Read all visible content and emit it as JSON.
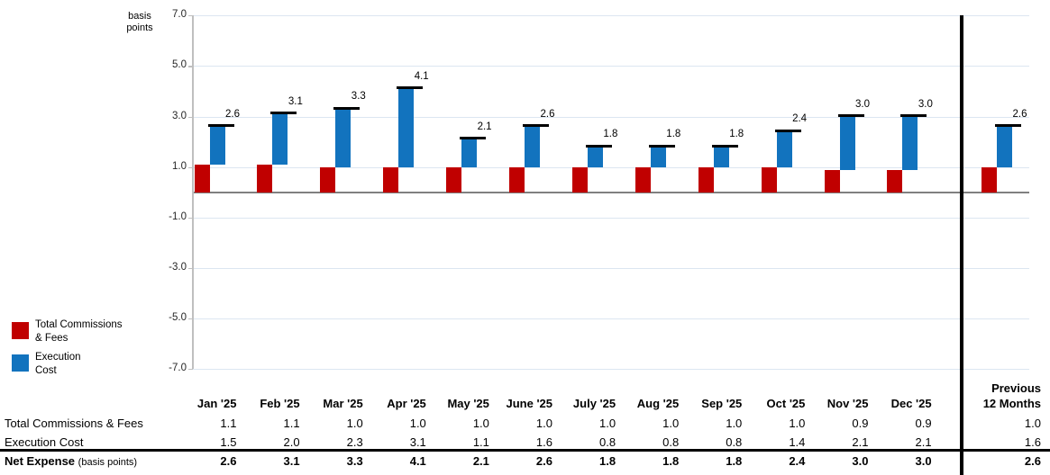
{
  "chart": {
    "unit_label_line1": "basis",
    "unit_label_line2": "points",
    "y_tick_values": [
      7,
      5,
      3,
      1,
      -1,
      -3,
      -5,
      -7
    ],
    "y_tick_labels": [
      "7.0",
      "5.0",
      "3.0",
      "1.0",
      "-1.0",
      "-3.0",
      "-5.0",
      "-7.0"
    ],
    "gridline_color": "#dce6f1",
    "zero_line_color": "#808080",
    "separator_color": "#000000"
  },
  "chart_data": {
    "type": "bar",
    "subtype": "stacked-waterfall with net total markers",
    "categories": [
      "Jan '25",
      "Feb '25",
      "Mar '25",
      "Apr '25",
      "May '25",
      "June '25",
      "July '25",
      "Aug '25",
      "Sep '25",
      "Oct '25",
      "Nov '25",
      "Dec '25",
      "Previous 12 Months"
    ],
    "series": [
      {
        "name": "Total Commissions & Fees",
        "color": "#c00000",
        "values": [
          1.1,
          1.1,
          1.0,
          1.0,
          1.0,
          1.0,
          1.0,
          1.0,
          1.0,
          1.0,
          0.9,
          0.9,
          1.0
        ]
      },
      {
        "name": "Execution Cost",
        "color": "#1273be",
        "values": [
          1.5,
          2.0,
          2.3,
          3.1,
          1.1,
          1.6,
          0.8,
          0.8,
          0.8,
          1.4,
          2.1,
          2.1,
          1.6
        ]
      }
    ],
    "totals": {
      "name": "Net Expense",
      "unit": "basis points",
      "values": [
        2.6,
        3.1,
        3.3,
        4.1,
        2.1,
        2.6,
        1.8,
        1.8,
        1.8,
        2.4,
        3.0,
        3.0,
        2.6
      ]
    },
    "ylabel": "basis points",
    "ylim": [
      -7.0,
      7.0
    ],
    "y_tick_step": 2.0,
    "grid": true,
    "legend_position": "left-middle",
    "annotations": "net total value label above a black marker line on each bar; thick vertical black rule separates monthly columns from Previous 12 Months"
  },
  "legend": {
    "items": [
      {
        "label_line1": "Total Commissions",
        "label_line2": "& Fees",
        "color": "#c00000"
      },
      {
        "label_line1": "Execution",
        "label_line2": "Cost",
        "color": "#1273be"
      }
    ]
  },
  "table": {
    "row1_label": "Total Commissions & Fees",
    "row2_label": "Execution Cost",
    "net_label": "Net Expense",
    "net_sublabel": "(basis points)",
    "prev_header_line1": "Previous",
    "prev_header_line2": "12 Months"
  }
}
